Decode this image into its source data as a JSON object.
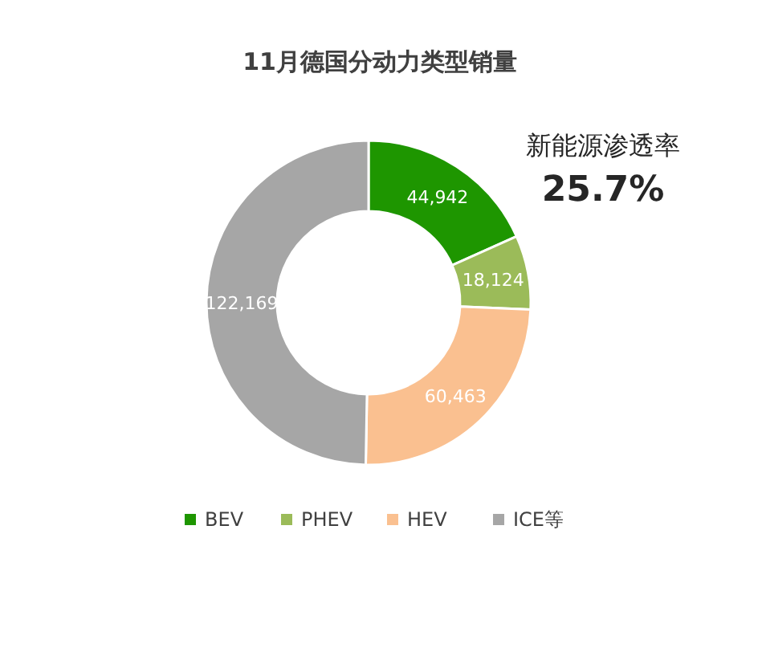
{
  "chart_data": {
    "type": "donut",
    "title": "11月德国分动力类型销量",
    "categories": [
      "BEV",
      "PHEV",
      "HEV",
      "ICE等"
    ],
    "values": [
      44942,
      18124,
      60463,
      122169
    ],
    "colors": [
      "#1e9600",
      "#9bbb59",
      "#fac090",
      "#a6a6a6"
    ],
    "value_labels": [
      "44,942",
      "18,124",
      "60,463",
      "122,169"
    ],
    "annotations": [
      "新能源渗透率",
      "25.7%"
    ],
    "legend": "bottom"
  }
}
